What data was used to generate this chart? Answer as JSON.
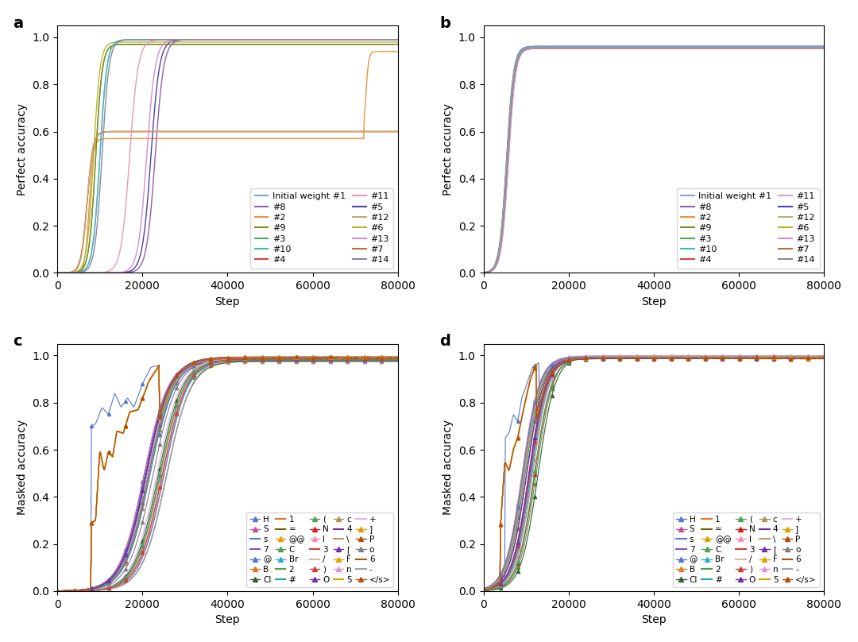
{
  "colors_14": [
    "#7fa8d4",
    "#e8963c",
    "#4aaa5a",
    "#d94040",
    "#4444b0",
    "#b8b830",
    "#c07030",
    "#9060b0",
    "#8a8a20",
    "#40b8b8",
    "#e898b8",
    "#c8aa70",
    "#d090d0",
    "#8888a0"
  ],
  "legend_labels_14": [
    "Initial weight #1",
    "#2",
    "#3",
    "#4",
    "#5",
    "#6",
    "#7",
    "#8",
    "#9",
    "#10",
    "#11",
    "#12",
    "#13",
    "#14"
  ],
  "token_colors": {
    "H": "#5577cc",
    "B": "#e07820",
    "C": "#50a050",
    "N": "#cc2020",
    "O": "#7030a0",
    "F": "#e0a000",
    "P": "#b05010",
    "S": "#c050a0",
    "Cl": "#306030",
    "Br": "#30a8e0",
    "I": "#f090b0",
    "c": "#b09050",
    "n": "#e090e0",
    "o": "#808080",
    "s": "#5577cc",
    "1": "#e07820",
    "2": "#50a050",
    "3": "#cc4040",
    "4": "#7030a0",
    "5": "#e0a000",
    "6": "#b05010",
    "7": "#8855bb",
    "=": "#706000",
    "#": "#20a0c0",
    "/": "#e0b0b0",
    "\\": "#c09860",
    "+": "#e0b0e0",
    "-": "#a0a0b8",
    "@": "#5577cc",
    "@@": "#e0a000",
    "(": "#50a050",
    ")": "#cc4040",
    "[": "#7030a0",
    "]": "#e0a000",
    "</s>": "#b05010"
  },
  "panel_a_params": {
    "midpoints": [
      10000,
      7500,
      9000,
      7000,
      22000,
      8500,
      7000,
      23000,
      9000,
      10000,
      17000,
      7000,
      21000,
      10500
    ],
    "steepness": [
      0.0012,
      0.0015,
      0.0013,
      0.0014,
      0.001,
      0.0013,
      0.0014,
      0.001,
      0.0013,
      0.0012,
      0.001,
      0.0015,
      0.001,
      0.0012
    ],
    "finals": [
      0.99,
      0.94,
      0.97,
      0.6,
      0.99,
      0.98,
      0.6,
      0.99,
      0.97,
      0.99,
      0.99,
      0.6,
      0.99,
      0.99
    ],
    "plateaus": [
      null,
      0.57,
      null,
      null,
      null,
      null,
      null,
      null,
      null,
      null,
      null,
      null,
      null,
      null
    ],
    "jump_at": [
      null,
      72000,
      null,
      null,
      null,
      null,
      null,
      null,
      null,
      null,
      null,
      null,
      null,
      null
    ]
  },
  "panel_b_midpoints": [
    5500,
    5700,
    5600,
    5800,
    5400,
    5650,
    5750,
    5550,
    5600,
    5450,
    5850,
    5500,
    5700,
    5650
  ],
  "panel_b_finals": [
    0.96,
    0.955,
    0.958,
    0.953,
    0.962,
    0.956,
    0.954,
    0.959,
    0.957,
    0.961,
    0.953,
    0.956,
    0.958,
    0.955
  ],
  "panel_b_steepness": 0.0012,
  "tokens_order": [
    "H",
    "B",
    "C",
    "N",
    "O",
    "F",
    "P",
    "S",
    "Cl",
    "Br",
    "I",
    "c",
    "n",
    "o",
    "s",
    "1",
    "2",
    "3",
    "4",
    "5",
    "6",
    "7",
    "=",
    "#",
    "/",
    "\\",
    "+",
    "-",
    "@",
    "@@",
    "(",
    ")",
    "[",
    "]",
    "</s>"
  ],
  "marker_tokens": [
    "H",
    "B",
    "C",
    "N",
    "O",
    "F",
    "P",
    "S",
    "Cl",
    "Br",
    "I",
    "c",
    "n",
    "o",
    "@",
    "@@",
    "(",
    ")",
    "[",
    "]",
    "</s>"
  ],
  "legend_rows": [
    [
      "H",
      "S",
      "s",
      "7",
      "@"
    ],
    [
      "B",
      "Cl",
      "1",
      "=",
      "@@"
    ],
    [
      "C",
      "Br",
      "2",
      "#",
      "("
    ],
    [
      "N",
      "I",
      "3",
      "/",
      ")"
    ],
    [
      "O",
      "c",
      "4",
      "\\",
      "["
    ],
    [
      "F",
      "n",
      "5",
      "+",
      "]"
    ],
    [
      "P",
      "o",
      "6",
      "-",
      "</s>"
    ]
  ]
}
